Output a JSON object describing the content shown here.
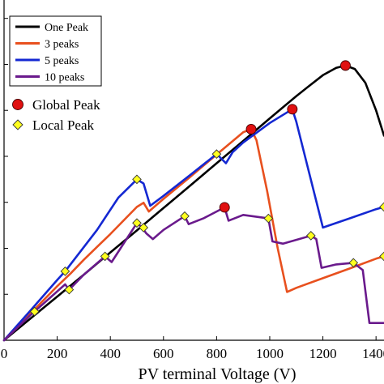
{
  "chart_data": {
    "type": "line",
    "title": "",
    "xlabel": "PV terminal Voltage (V)",
    "ylabel": "",
    "xlim": [
      0,
      1430
    ],
    "ylim": [
      0,
      1480
    ],
    "xticks": [
      0,
      200,
      400,
      600,
      800,
      1000,
      1200,
      1400
    ],
    "xtick_labels": [
      "0",
      "200",
      "400",
      "600",
      "800",
      "1000",
      "1200",
      "1400"
    ],
    "yticks": [
      200,
      400,
      600,
      800,
      1000,
      1200,
      1400
    ],
    "grid": false,
    "legend": {
      "placement": "top-left",
      "entries": [
        "One Peak",
        "3 peaks",
        "5 peaks",
        "10 peaks"
      ]
    },
    "marker_legend": {
      "global_label": "Global Peak",
      "local_label": "Local Peak"
    },
    "series": [
      {
        "name": "One Peak",
        "color": "#000000",
        "x": [
          0,
          100,
          200,
          300,
          400,
          500,
          600,
          700,
          800,
          900,
          1000,
          1100,
          1150,
          1200,
          1250,
          1285,
          1320,
          1360,
          1400,
          1430
        ],
        "y": [
          0,
          95,
          190,
          285,
          382,
          478,
          575,
          672,
          770,
          867,
          965,
          1062,
          1108,
          1153,
          1185,
          1195,
          1180,
          1120,
          1000,
          890
        ]
      },
      {
        "name": "3 peaks",
        "color": "#e8501e",
        "x": [
          0,
          100,
          200,
          250,
          300,
          400,
          500,
          525,
          545,
          600,
          700,
          800,
          900,
          930,
          950,
          990,
          1030,
          1065,
          1100,
          1200,
          1300,
          1400,
          1430
        ],
        "y": [
          0,
          117,
          235,
          290,
          350,
          462,
          580,
          598,
          560,
          615,
          710,
          808,
          905,
          918,
          870,
          650,
          400,
          210,
          228,
          270,
          312,
          355,
          365
        ]
      },
      {
        "name": "5 peaks",
        "color": "#1428d2",
        "x": [
          0,
          100,
          200,
          230,
          270,
          350,
          430,
          500,
          525,
          550,
          600,
          700,
          800,
          835,
          860,
          900,
          1000,
          1085,
          1100,
          1150,
          1200,
          1300,
          1400,
          1430
        ],
        "y": [
          0,
          130,
          262,
          300,
          360,
          480,
          620,
          700,
          682,
          585,
          628,
          718,
          810,
          770,
          818,
          860,
          945,
          1005,
          950,
          720,
          490,
          530,
          570,
          580
        ]
      },
      {
        "name": "10 peaks",
        "color": "#6a1a8c",
        "x": [
          0,
          100,
          115,
          230,
          245,
          300,
          380,
          405,
          500,
          520,
          535,
          560,
          600,
          680,
          695,
          750,
          830,
          845,
          900,
          995,
          1010,
          1050,
          1155,
          1175,
          1195,
          1250,
          1315,
          1350,
          1375,
          1430
        ],
        "y": [
          0,
          110,
          125,
          243,
          220,
          285,
          365,
          340,
          510,
          490,
          465,
          440,
          480,
          540,
          505,
          530,
          578,
          520,
          545,
          530,
          430,
          420,
          455,
          440,
          315,
          330,
          337,
          305,
          75,
          75
        ]
      }
    ],
    "markers": {
      "global_peaks": [
        {
          "x": 1285,
          "y": 1195
        },
        {
          "x": 1085,
          "y": 1005
        },
        {
          "x": 930,
          "y": 918
        },
        {
          "x": 830,
          "y": 578
        }
      ],
      "local_peaks": [
        {
          "x": 115,
          "y": 125
        },
        {
          "x": 230,
          "y": 300
        },
        {
          "x": 245,
          "y": 220
        },
        {
          "x": 380,
          "y": 365
        },
        {
          "x": 500,
          "y": 700
        },
        {
          "x": 500,
          "y": 510
        },
        {
          "x": 525,
          "y": 490
        },
        {
          "x": 680,
          "y": 540
        },
        {
          "x": 800,
          "y": 810
        },
        {
          "x": 995,
          "y": 530
        },
        {
          "x": 1155,
          "y": 455
        },
        {
          "x": 1315,
          "y": 337
        },
        {
          "x": 1430,
          "y": 365
        },
        {
          "x": 1430,
          "y": 580
        }
      ]
    }
  }
}
